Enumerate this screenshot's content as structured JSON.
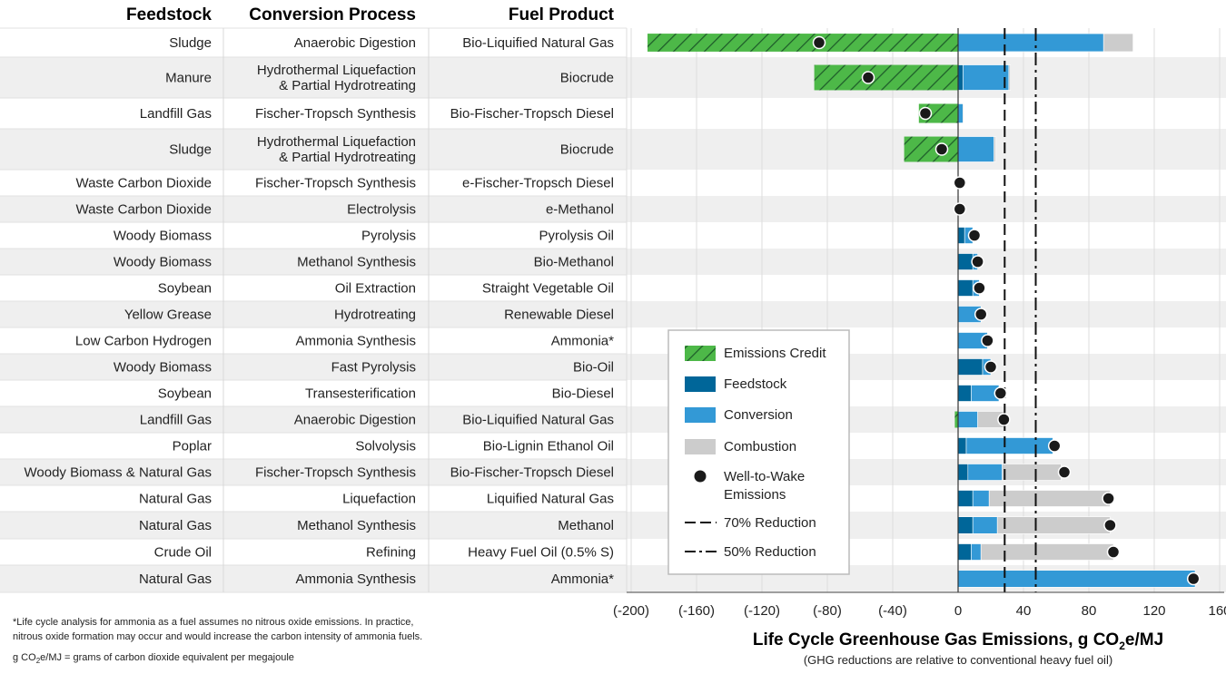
{
  "table": {
    "headers": [
      "Feedstock",
      "Conversion Process",
      "Fuel Product"
    ]
  },
  "chart_data": {
    "type": "bar",
    "orientation": "horizontal",
    "stacked": true,
    "xlabel": "Life Cycle Greenhouse Gas Emissions, g CO₂e/MJ",
    "xlabel_parts": [
      "Life Cycle Greenhouse Gas Emissions, g CO",
      "2",
      "e/MJ"
    ],
    "xsubtitle": "(GHG reductions are relative to conventional heavy fuel oil)",
    "xlim": [
      -200,
      160
    ],
    "xticks": [
      -200,
      -160,
      -120,
      -80,
      -40,
      0,
      40,
      80,
      120,
      160
    ],
    "xtick_labels": [
      "(-200)",
      "(-160)",
      "(-120)",
      "(-80)",
      "(-40)",
      "0",
      "40",
      "80",
      "120",
      "160"
    ],
    "grid": true,
    "reference_lines": [
      {
        "name": "70% Reduction",
        "value": 28.5,
        "style": "dashed"
      },
      {
        "name": "50% Reduction",
        "value": 47.5,
        "style": "dash-dot"
      }
    ],
    "series_names": [
      "Emissions Credit",
      "Feedstock",
      "Conversion",
      "Combustion",
      "Well-to-Wake Emissions"
    ],
    "colors": {
      "credit": "#4db848",
      "credit_hatch": "#1e5c2a",
      "feedstock": "#006699",
      "conversion": "#3399d6",
      "combustion": "#cccccc",
      "wtw": "#1a1a1a",
      "ref_line": "#111111",
      "row_alt": "#efefef"
    },
    "legend": {
      "placement": "center",
      "items": [
        {
          "label": "Emissions Credit",
          "kind": "credit"
        },
        {
          "label": "Feedstock",
          "kind": "feedstock"
        },
        {
          "label": "Conversion",
          "kind": "conversion"
        },
        {
          "label": "Combustion",
          "kind": "combustion"
        },
        {
          "label_lines": [
            "Well-to-Wake",
            "Emissions"
          ],
          "kind": "wtw"
        },
        {
          "label": "70% Reduction",
          "kind": "dash"
        },
        {
          "label": "50% Reduction",
          "kind": "dashdot"
        }
      ]
    },
    "rows": [
      {
        "feedstock": [
          "Sludge"
        ],
        "process": [
          "Anaerobic Digestion"
        ],
        "fuel": [
          "Bio-Liquified Natural Gas"
        ],
        "credit": -190,
        "feedstock_val": 0,
        "conversion": 89,
        "combustion": 18,
        "wtw": -85
      },
      {
        "feedstock": [
          "Manure"
        ],
        "process": [
          "Hydrothermal Liquefaction",
          "& Partial Hydrotreating"
        ],
        "fuel": [
          "Biocrude"
        ],
        "credit": -88,
        "feedstock_val": 3,
        "conversion": 28,
        "combustion": 1,
        "wtw": -55
      },
      {
        "feedstock": [
          "Landfill Gas"
        ],
        "process": [
          "Fischer-Tropsch Synthesis"
        ],
        "fuel": [
          "Bio-Fischer-Tropsch Diesel"
        ],
        "credit": -24,
        "feedstock_val": 0,
        "conversion": 3,
        "combustion": 0.5,
        "wtw": -20
      },
      {
        "feedstock": [
          "Sludge"
        ],
        "process": [
          "Hydrothermal Liquefaction",
          "& Partial Hydrotreating"
        ],
        "fuel": [
          "Biocrude"
        ],
        "credit": -33,
        "feedstock_val": 0,
        "conversion": 22,
        "combustion": 1,
        "wtw": -10
      },
      {
        "feedstock": [
          "Waste Carbon Dioxide"
        ],
        "process": [
          "Fischer-Tropsch Synthesis"
        ],
        "fuel": [
          "e-Fischer-Tropsch Diesel"
        ],
        "credit": 0,
        "feedstock_val": 0,
        "conversion": 0,
        "combustion": 0,
        "wtw": 1
      },
      {
        "feedstock": [
          "Waste Carbon Dioxide"
        ],
        "process": [
          "Electrolysis"
        ],
        "fuel": [
          "e-Methanol"
        ],
        "credit": 0,
        "feedstock_val": 0,
        "conversion": 0,
        "combustion": 0,
        "wtw": 1
      },
      {
        "feedstock": [
          "Woody Biomass"
        ],
        "process": [
          "Pyrolysis"
        ],
        "fuel": [
          "Pyrolysis Oil"
        ],
        "credit": 0,
        "feedstock_val": 4,
        "conversion": 5,
        "combustion": 0,
        "wtw": 10
      },
      {
        "feedstock": [
          "Woody Biomass"
        ],
        "process": [
          "Methanol Synthesis"
        ],
        "fuel": [
          "Bio-Methanol"
        ],
        "credit": 0,
        "feedstock_val": 9,
        "conversion": 3,
        "combustion": 0,
        "wtw": 12
      },
      {
        "feedstock": [
          "Soybean"
        ],
        "process": [
          "Oil Extraction"
        ],
        "fuel": [
          "Straight Vegetable Oil"
        ],
        "credit": 0,
        "feedstock_val": 9,
        "conversion": 4,
        "combustion": 0,
        "wtw": 13
      },
      {
        "feedstock": [
          "Yellow Grease"
        ],
        "process": [
          "Hydrotreating"
        ],
        "fuel": [
          "Renewable Diesel"
        ],
        "credit": 0,
        "feedstock_val": 0,
        "conversion": 14,
        "combustion": 0,
        "wtw": 14
      },
      {
        "feedstock": [
          "Low Carbon Hydrogen"
        ],
        "process": [
          "Ammonia Synthesis"
        ],
        "fuel": [
          "Ammonia*"
        ],
        "credit": 0,
        "feedstock_val": 0,
        "conversion": 18,
        "combustion": 0,
        "wtw": 18
      },
      {
        "feedstock": [
          "Woody Biomass"
        ],
        "process": [
          "Fast Pyrolysis"
        ],
        "fuel": [
          "Bio-Oil"
        ],
        "credit": 0,
        "feedstock_val": 15,
        "conversion": 5,
        "combustion": 0,
        "wtw": 20
      },
      {
        "feedstock": [
          "Soybean"
        ],
        "process": [
          "Transesterification"
        ],
        "fuel": [
          "Bio-Diesel"
        ],
        "credit": 0,
        "feedstock_val": 8,
        "conversion": 17,
        "combustion": 0,
        "wtw": 26
      },
      {
        "feedstock": [
          "Landfill Gas"
        ],
        "process": [
          "Anaerobic Digestion"
        ],
        "fuel": [
          "Bio-Liquified Natural Gas"
        ],
        "credit": -2,
        "feedstock_val": 0,
        "conversion": 12,
        "combustion": 17,
        "wtw": 28
      },
      {
        "feedstock": [
          "Poplar"
        ],
        "process": [
          "Solvolysis"
        ],
        "fuel": [
          "Bio-Lignin Ethanol Oil"
        ],
        "credit": 0,
        "feedstock_val": 5,
        "conversion": 53,
        "combustion": 0,
        "wtw": 59
      },
      {
        "feedstock": [
          "Woody Biomass & Natural Gas"
        ],
        "process": [
          "Fischer-Tropsch Synthesis"
        ],
        "fuel": [
          "Bio-Fischer-Tropsch Diesel"
        ],
        "credit": 0,
        "feedstock_val": 6,
        "conversion": 21,
        "combustion": 36,
        "wtw": 65
      },
      {
        "feedstock": [
          "Natural Gas"
        ],
        "process": [
          "Liquefaction"
        ],
        "fuel": [
          "Liquified Natural Gas"
        ],
        "credit": 0,
        "feedstock_val": 9,
        "conversion": 10,
        "combustion": 74,
        "wtw": 92
      },
      {
        "feedstock": [
          "Natural Gas"
        ],
        "process": [
          "Methanol Synthesis"
        ],
        "fuel": [
          "Methanol"
        ],
        "credit": 0,
        "feedstock_val": 9,
        "conversion": 15,
        "combustion": 69,
        "wtw": 93
      },
      {
        "feedstock": [
          "Crude Oil"
        ],
        "process": [
          "Refining"
        ],
        "fuel": [
          "Heavy Fuel Oil (0.5% S)"
        ],
        "credit": 0,
        "feedstock_val": 8,
        "conversion": 6,
        "combustion": 81,
        "wtw": 95
      },
      {
        "feedstock": [
          "Natural Gas"
        ],
        "process": [
          "Ammonia Synthesis"
        ],
        "fuel": [
          "Ammonia*"
        ],
        "credit": 0,
        "feedstock_val": 0,
        "conversion": 145,
        "combustion": 0,
        "wtw": 144
      }
    ]
  },
  "footnotes": {
    "ammonia_note": [
      "*Life cycle analysis for ammonia as a fuel assumes no nitrous oxide emissions. In practice,",
      "nitrous oxide formation may occur and would increase the carbon intensity of ammonia fuels."
    ],
    "unit_note_parts": [
      "g CO",
      "2",
      "e/MJ = grams of carbon dioxide equivalent per megajoule"
    ]
  }
}
